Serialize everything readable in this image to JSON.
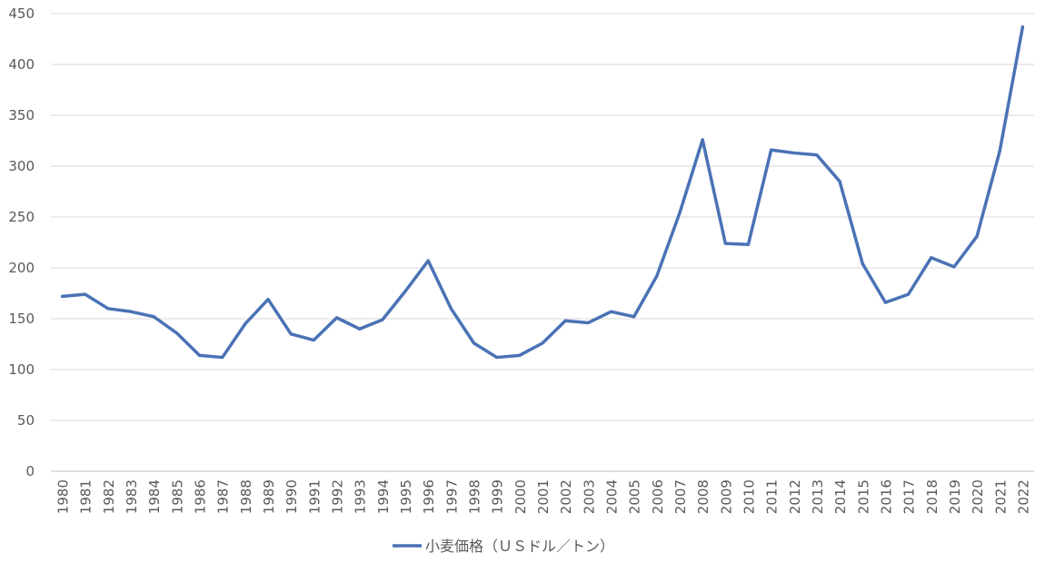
{
  "chart_data": {
    "type": "line",
    "title": "",
    "xlabel": "",
    "ylabel": "",
    "ylim": [
      0,
      450
    ],
    "yticks": [
      0,
      50,
      100,
      150,
      200,
      250,
      300,
      350,
      400,
      450
    ],
    "grid": true,
    "legend_position": "bottom",
    "line_color": "#4a72b5",
    "categories": [
      "1980",
      "1981",
      "1982",
      "1983",
      "1984",
      "1985",
      "1986",
      "1987",
      "1988",
      "1989",
      "1990",
      "1991",
      "1992",
      "1993",
      "1994",
      "1995",
      "1996",
      "1997",
      "1998",
      "1999",
      "2000",
      "2001",
      "2002",
      "2003",
      "2004",
      "2005",
      "2006",
      "2007",
      "2008",
      "2009",
      "2010",
      "2011",
      "2012",
      "2013",
      "2014",
      "2015",
      "2016",
      "2017",
      "2018",
      "2019",
      "2020",
      "2021",
      "2022"
    ],
    "series": [
      {
        "name": "小麦価格（ＵＳドル／トン）",
        "values": [
          172,
          174,
          160,
          157,
          152,
          136,
          114,
          112,
          145,
          169,
          135,
          129,
          151,
          140,
          149,
          177,
          207,
          160,
          126,
          112,
          114,
          126,
          148,
          146,
          157,
          152,
          192,
          254,
          326,
          224,
          223,
          316,
          313,
          311,
          285,
          204,
          166,
          174,
          210,
          201,
          231,
          315,
          437
        ]
      }
    ]
  }
}
